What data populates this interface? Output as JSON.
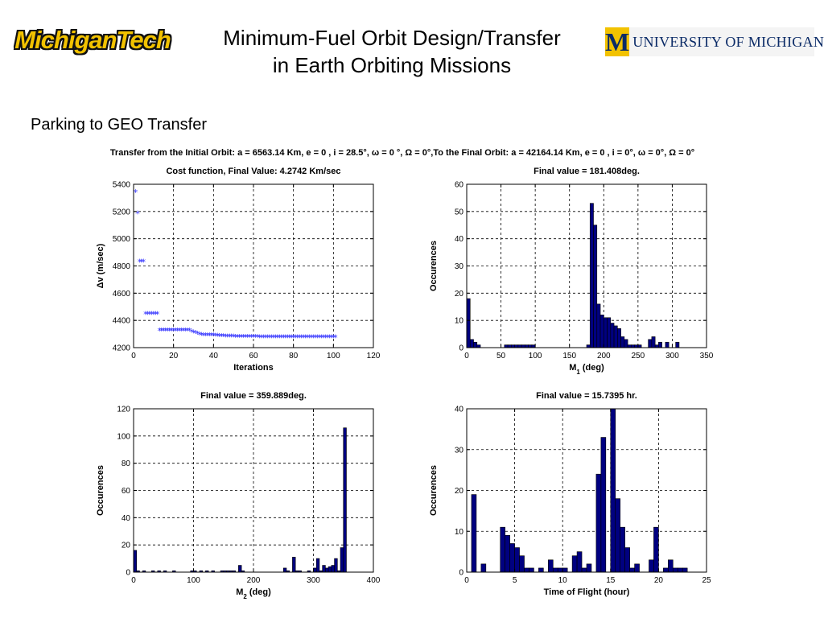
{
  "header": {
    "left_logo": "MichiganTech",
    "title_line1": "Minimum-Fuel Orbit Design/Transfer",
    "title_line2": "in Earth Orbiting Missions",
    "right_logo_letter": "M",
    "right_logo_text": "UNIVERSITY OF MICHIGAN",
    "colors": {
      "mt_gold": "#f2c200",
      "um_blue": "#0a2a66"
    }
  },
  "slide_subtitle": "Parking to GEO Transfer",
  "figure_title": "Transfer from the Initial Orbit: a = 6563.14 Km, e = 0 , i = 28.5°, ω = 0 °, Ω = 0°,To the Final Orbit: a = 42164.14 Km, e = 0 , i = 0°, ω = 0°, Ω = 0°",
  "chart_data": [
    {
      "type": "scatter",
      "title": "Cost function, Final Value: 4.2742  Km/sec",
      "xlabel": "Iterations",
      "ylabel": "Δv (m/sec)",
      "xlim": [
        0,
        120
      ],
      "ylim": [
        4200,
        5400
      ],
      "xticks": [
        0,
        20,
        40,
        60,
        80,
        100,
        120
      ],
      "yticks": [
        4200,
        4400,
        4600,
        4800,
        5000,
        5200,
        5400
      ],
      "grid": true,
      "marker": "*",
      "color": "#3333ff",
      "series": [
        {
          "x": [
            1,
            2,
            3,
            4,
            5,
            6,
            7,
            8,
            9,
            10,
            11,
            12,
            13,
            14,
            15,
            16,
            17,
            18,
            19,
            20,
            21,
            22,
            23,
            24,
            25,
            26,
            27,
            28,
            29,
            30,
            31,
            32,
            33,
            34,
            35,
            36,
            37,
            38,
            39,
            40,
            41,
            42,
            43,
            44,
            45,
            46,
            47,
            48,
            49,
            50,
            51,
            52,
            53,
            54,
            55,
            56,
            57,
            58,
            59,
            60,
            61,
            62,
            63,
            64,
            65,
            66,
            67,
            68,
            69,
            70,
            71,
            72,
            73,
            74,
            75,
            76,
            77,
            78,
            79,
            80,
            81,
            82,
            83,
            84,
            85,
            86,
            87,
            88,
            89,
            90,
            91,
            92,
            93,
            94,
            95,
            96,
            97,
            98,
            99,
            100,
            101
          ],
          "y": [
            5340,
            5185,
            4830,
            4830,
            4830,
            4445,
            4445,
            4445,
            4445,
            4445,
            4445,
            4445,
            4325,
            4325,
            4325,
            4325,
            4325,
            4325,
            4325,
            4325,
            4325,
            4325,
            4325,
            4325,
            4325,
            4325,
            4325,
            4325,
            4315,
            4310,
            4305,
            4300,
            4295,
            4292,
            4290,
            4290,
            4290,
            4290,
            4290,
            4288,
            4286,
            4285,
            4284,
            4283,
            4282,
            4281,
            4280,
            4280,
            4280,
            4279,
            4278,
            4278,
            4278,
            4277,
            4277,
            4277,
            4277,
            4276,
            4276,
            4276,
            4276,
            4276,
            4275,
            4275,
            4275,
            4275,
            4275,
            4275,
            4275,
            4275,
            4275,
            4275,
            4275,
            4275,
            4275,
            4275,
            4275,
            4275,
            4275,
            4275,
            4275,
            4275,
            4275,
            4275,
            4275,
            4275,
            4275,
            4275,
            4275,
            4275,
            4275,
            4275,
            4275,
            4275,
            4275,
            4275,
            4275,
            4275,
            4275,
            4275,
            4274
          ]
        }
      ]
    },
    {
      "type": "bar",
      "title": "Final value = 181.408deg.",
      "xlabel": "M",
      "xlabel_sub": "1",
      "xlabel_suffix": " (deg)",
      "ylabel": "Occurences",
      "xlim": [
        0,
        350
      ],
      "ylim": [
        0,
        60
      ],
      "xticks": [
        0,
        50,
        100,
        150,
        200,
        250,
        300,
        350
      ],
      "yticks": [
        0,
        10,
        20,
        30,
        40,
        50,
        60
      ],
      "grid": true,
      "color": "#000080",
      "bin_width": 5,
      "bin_starts": [
        0,
        5,
        10,
        15,
        55,
        60,
        65,
        70,
        75,
        80,
        85,
        90,
        95,
        175,
        180,
        185,
        190,
        195,
        200,
        205,
        210,
        215,
        220,
        225,
        230,
        235,
        240,
        245,
        250,
        265,
        270,
        275,
        280,
        290,
        305
      ],
      "values": [
        18,
        3,
        2,
        1,
        1,
        1,
        1,
        1,
        1,
        1,
        1,
        1,
        1,
        1,
        53,
        45,
        16,
        12,
        11,
        11,
        9,
        8,
        7,
        4,
        3,
        1,
        1,
        1,
        1,
        3,
        4,
        1,
        2,
        2,
        2
      ]
    },
    {
      "type": "bar",
      "title": "Final value = 359.889deg.",
      "xlabel": "M",
      "xlabel_sub": "2",
      "xlabel_suffix": " (deg)",
      "ylabel": "Occurences",
      "xlim": [
        0,
        400
      ],
      "ylim": [
        0,
        120
      ],
      "xticks": [
        0,
        100,
        200,
        300,
        400
      ],
      "yticks": [
        0,
        20,
        40,
        60,
        80,
        100,
        120
      ],
      "grid": true,
      "color": "#000080",
      "bin_width": 5,
      "bin_starts": [
        0,
        5,
        15,
        30,
        40,
        50,
        65,
        95,
        100,
        110,
        120,
        130,
        145,
        150,
        155,
        160,
        165,
        175,
        180,
        250,
        255,
        265,
        270,
        275,
        290,
        300,
        305,
        310,
        315,
        320,
        325,
        330,
        335,
        340,
        345,
        350
      ],
      "values": [
        16,
        1,
        1,
        1,
        1,
        1,
        1,
        1,
        1,
        1,
        1,
        1,
        1,
        1,
        1,
        1,
        1,
        5,
        1,
        3,
        1,
        11,
        1,
        1,
        1,
        3,
        10,
        1,
        5,
        3,
        4,
        5,
        10,
        1,
        18,
        106
      ]
    },
    {
      "type": "bar",
      "title": "Final value = 15.7395 hr.",
      "xlabel": "Time of Flight (hour)",
      "ylabel": "Occurences",
      "xlim": [
        0,
        25
      ],
      "ylim": [
        0,
        40
      ],
      "xticks": [
        0,
        5,
        10,
        15,
        20,
        25
      ],
      "yticks": [
        0,
        10,
        20,
        30,
        40
      ],
      "grid": true,
      "color": "#000080",
      "bin_width": 0.5,
      "bin_starts": [
        0.5,
        1.5,
        3.5,
        4.0,
        4.5,
        5.0,
        5.5,
        6.0,
        6.5,
        7.5,
        8.5,
        9.0,
        9.5,
        10.0,
        11.0,
        11.5,
        12.0,
        12.5,
        13.5,
        14.0,
        15.0,
        15.5,
        16.0,
        16.5,
        17.0,
        17.5,
        19.0,
        19.5,
        20.5,
        21.0,
        21.5,
        22.0,
        22.5
      ],
      "values": [
        19,
        2,
        11,
        9,
        7,
        6,
        4,
        1,
        1,
        1,
        3,
        1,
        1,
        1,
        4,
        5,
        1,
        2,
        24,
        33,
        40,
        18,
        11,
        6,
        1,
        2,
        3,
        11,
        1,
        3,
        1,
        1,
        1
      ]
    }
  ]
}
